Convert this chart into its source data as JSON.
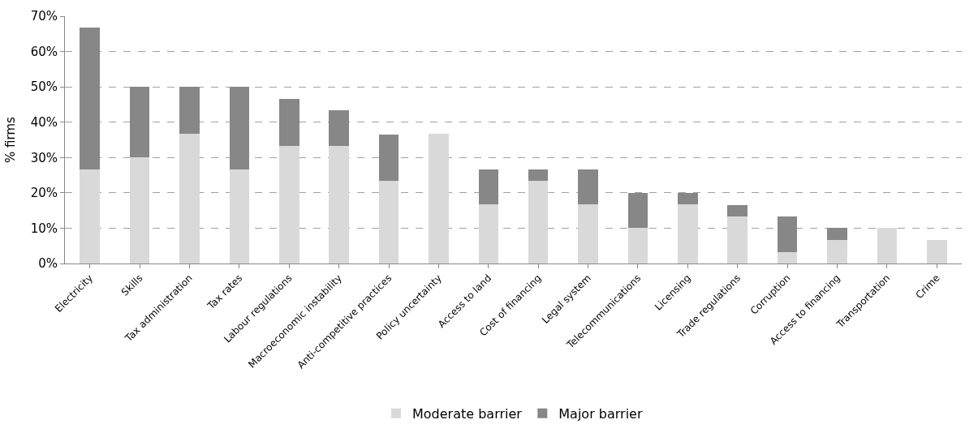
{
  "chart_data": {
    "type": "bar",
    "stacked": true,
    "ylabel": "% firms",
    "categories": [
      "Electricity",
      "Skills",
      "Tax administration",
      "Tax rates",
      "Labour regulations",
      "Macroeconomic instability",
      "Anti-competitive practices",
      "Policy uncertainty",
      "Access to land",
      "Cost of financing",
      "Legal system",
      "Telecommunications",
      "Licensing",
      "Trade regulations",
      "Corruption",
      "Access to financing",
      "Transportation",
      "Crime"
    ],
    "series": [
      {
        "name": "Moderate barrier",
        "color": "#d9d9d9",
        "values": [
          26.7,
          30,
          36.7,
          26.7,
          33.3,
          33.3,
          23.3,
          36.7,
          16.7,
          23.3,
          16.7,
          10,
          16.7,
          13.3,
          3.3,
          6.7,
          10,
          6.7
        ]
      },
      {
        "name": "Major barrier",
        "color": "#878787",
        "values": [
          40,
          20,
          13.3,
          23.3,
          13.3,
          10,
          13.3,
          0,
          10,
          3.3,
          10,
          10,
          3.3,
          3.3,
          10,
          3.3,
          0,
          0
        ]
      }
    ],
    "ylim": [
      0,
      70
    ],
    "yticks": [
      {
        "value": 0,
        "label": "0%"
      },
      {
        "value": 10,
        "label": "10%"
      },
      {
        "value": 20,
        "label": "20%"
      },
      {
        "value": 30,
        "label": "30%"
      },
      {
        "value": 40,
        "label": "40%"
      },
      {
        "value": 50,
        "label": "50%"
      },
      {
        "value": 60,
        "label": "60%"
      },
      {
        "value": 70,
        "label": "70%"
      }
    ],
    "grid": "y",
    "legend": "bottom"
  }
}
